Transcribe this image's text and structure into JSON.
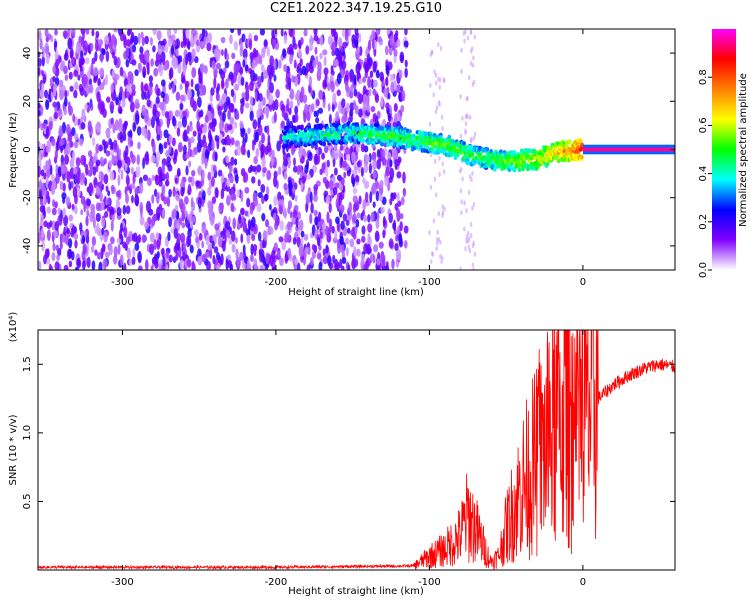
{
  "title": "C2E1.2022.347.19.25.G10",
  "colors": {
    "signal": "#ff0000",
    "axis": "#000000"
  },
  "chart_data": [
    {
      "type": "heatmap",
      "xlabel": "Height of straight line (km)",
      "ylabel": "Frequency (Hz)",
      "xlim": [
        -355,
        60
      ],
      "ylim": [
        -50,
        50
      ],
      "xticks": [
        -300,
        -200,
        -100,
        0
      ],
      "xtick_labels": [
        "-300",
        "-200",
        "-100",
        "0"
      ],
      "yticks": [
        -40,
        -20,
        0,
        20,
        40
      ],
      "ytick_labels": [
        "-40",
        "-20",
        "0",
        "20",
        "40"
      ],
      "colorbar": {
        "label": "Normalized spectral amplitude",
        "range": [
          0,
          1
        ],
        "ticks": [
          0.0,
          0.2,
          0.4,
          0.6,
          0.8
        ],
        "tick_labels": [
          "0.0",
          "0.2",
          "0.4",
          "0.6",
          "0.8"
        ],
        "colors": [
          "#ffffff",
          "#8000ff",
          "#0000ff",
          "#00ffff",
          "#00ff00",
          "#ffff00",
          "#ff8000",
          "#ff0000",
          "#ff00ff"
        ]
      },
      "noise_region_x": [
        -355,
        -115
      ],
      "signal_track": [
        {
          "x": -195,
          "f": 5,
          "amp": 0.4
        },
        {
          "x": -150,
          "f": 7,
          "amp": 0.45
        },
        {
          "x": -130,
          "f": 6,
          "amp": 0.5
        },
        {
          "x": -110,
          "f": 4,
          "amp": 0.5
        },
        {
          "x": -90,
          "f": 2,
          "amp": 0.55
        },
        {
          "x": -70,
          "f": -3,
          "amp": 0.5
        },
        {
          "x": -50,
          "f": -5,
          "amp": 0.55
        },
        {
          "x": -30,
          "f": -4,
          "amp": 0.6
        },
        {
          "x": -15,
          "f": -1,
          "amp": 0.7
        },
        {
          "x": 0,
          "f": 0,
          "amp": 0.85
        },
        {
          "x": 60,
          "f": 0,
          "amp": 1.0
        }
      ]
    },
    {
      "type": "line",
      "xlabel": "Height of straight line (km)",
      "ylabel": "SNR (10 * v/v)",
      "y_multiplier": "(x10⁴)",
      "xlim": [
        -355,
        60
      ],
      "ylim": [
        0,
        1.75
      ],
      "xticks": [
        -300,
        -200,
        -100,
        0
      ],
      "xtick_labels": [
        "-300",
        "-200",
        "-100",
        "0"
      ],
      "yticks": [
        0.5,
        1.0,
        1.5
      ],
      "ytick_labels": [
        "0.5",
        "1.0",
        "1.5"
      ],
      "series": [
        {
          "color": "#ff0000",
          "x": [
            -355,
            -200,
            -110,
            -100,
            -90,
            -80,
            -75,
            -70,
            -60,
            -55,
            -50,
            -40,
            -30,
            -20,
            -10,
            -5,
            0,
            10,
            20,
            30,
            40,
            50,
            60
          ],
          "y": [
            0.02,
            0.02,
            0.03,
            0.1,
            0.15,
            0.25,
            0.4,
            0.3,
            0.06,
            0.1,
            0.3,
            0.6,
            0.8,
            1.0,
            1.2,
            0.9,
            1.1,
            1.25,
            1.35,
            1.42,
            1.47,
            1.5,
            1.48
          ]
        }
      ]
    }
  ]
}
